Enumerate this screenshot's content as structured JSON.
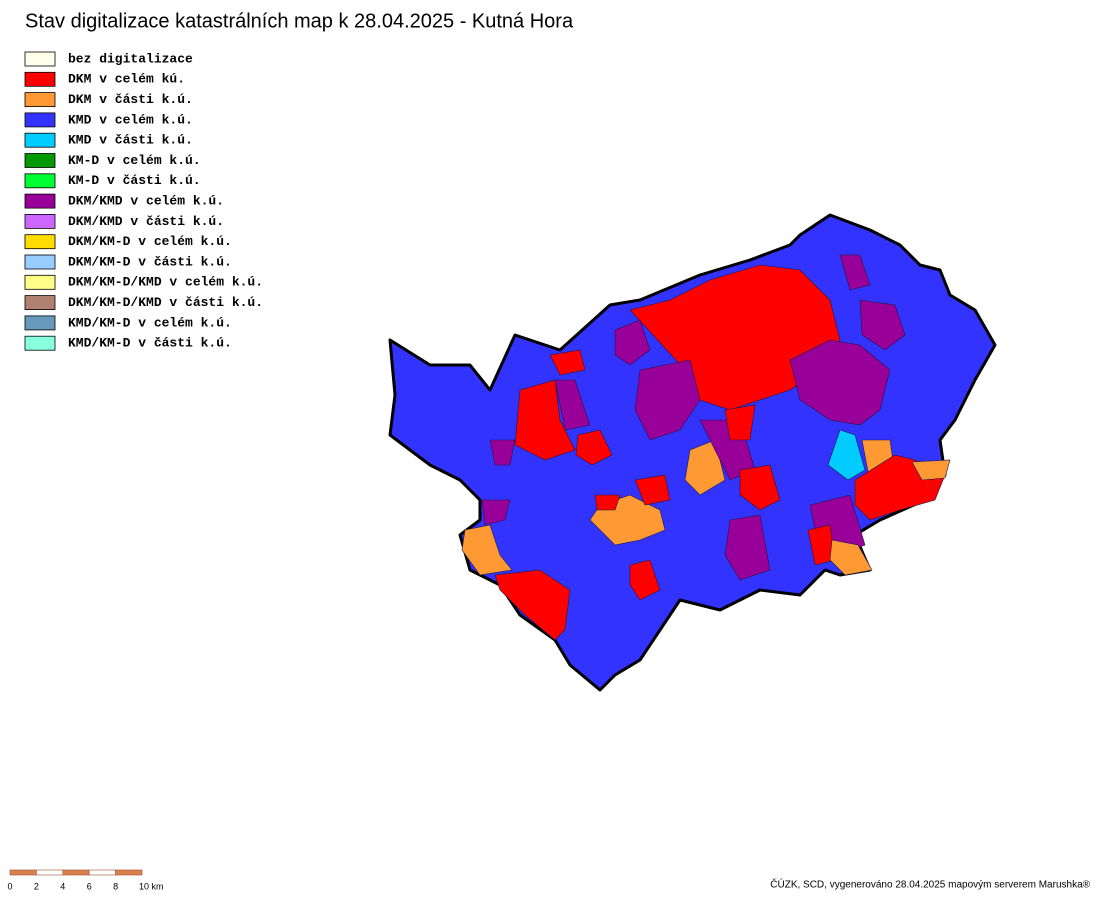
{
  "title": "Stav digitalizace katastrálních map k 28.04.2025 - Kutná Hora",
  "legend": [
    {
      "label": "bez digitalizace",
      "color": "#ffffea"
    },
    {
      "label": "DKM v celém kú.",
      "color": "#ff0000"
    },
    {
      "label": "DKM v části k.ú.",
      "color": "#ff9933"
    },
    {
      "label": "KMD v celém k.ú.",
      "color": "#3333ff"
    },
    {
      "label": "KMD v části k.ú.",
      "color": "#00ccff"
    },
    {
      "label": "KM-D v celém k.ú.",
      "color": "#009900"
    },
    {
      "label": "KM-D v části k.ú.",
      "color": "#00ff33"
    },
    {
      "label": "DKM/KMD v celém k.ú.",
      "color": "#990099"
    },
    {
      "label": "DKM/KMD v části k.ú.",
      "color": "#cc66ff"
    },
    {
      "label": "DKM/KM-D v celém k.ú.",
      "color": "#ffdd00"
    },
    {
      "label": "DKM/KM-D v části k.ú.",
      "color": "#99ccff"
    },
    {
      "label": "DKM/KM-D/KMD v celém k.ú.",
      "color": "#ffff88"
    },
    {
      "label": "DKM/KM-D/KMD v části k.ú.",
      "color": "#b08070"
    },
    {
      "label": "KMD/KM-D v celém k.ú.",
      "color": "#6699bb"
    },
    {
      "label": "KMD/KM-D v části k.ú.",
      "color": "#88ffdd"
    }
  ],
  "scale_labels": [
    "0",
    "2",
    "4",
    "6",
    "8",
    "10 km"
  ],
  "footer": "ČÚZK, SCD, vygenerováno 28.04.2025 mapovým serverem Marushka®"
}
